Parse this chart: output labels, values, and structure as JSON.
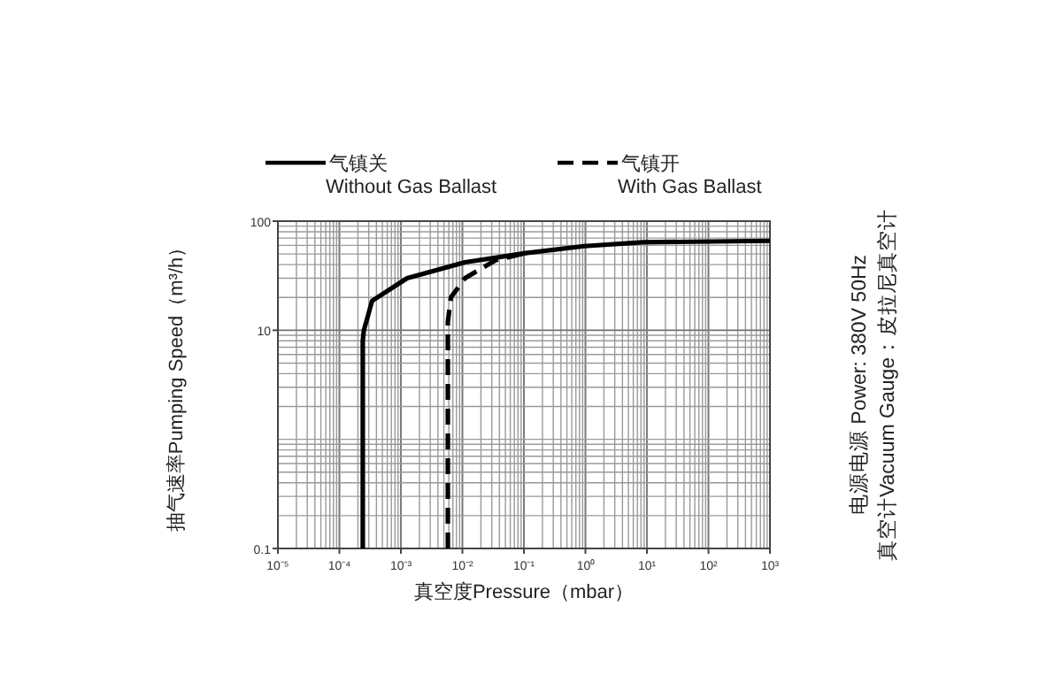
{
  "chart_data": {
    "type": "line",
    "xlabel": "真空度Pressure（mbar）",
    "ylabel": "抽气速率Pumping Speed（m³/h）",
    "log": "xy",
    "grid": true,
    "legend": "top",
    "xlim": [
      1e-05,
      1000
    ],
    "ylim": [
      0.1,
      100
    ],
    "xticks": [
      {
        "value": 1e-05,
        "label": "10⁻⁵"
      },
      {
        "value": 0.0001,
        "label": "10⁻⁴"
      },
      {
        "value": 0.001,
        "label": "10⁻³"
      },
      {
        "value": 0.01,
        "label": "10⁻²"
      },
      {
        "value": 0.1,
        "label": "10⁻¹"
      },
      {
        "value": 1,
        "label": "10⁰"
      },
      {
        "value": 10,
        "label": "10¹"
      },
      {
        "value": 100,
        "label": "10²"
      },
      {
        "value": 1000,
        "label": "10³"
      }
    ],
    "yticks": [
      0.1,
      10,
      100
    ],
    "series": [
      {
        "name": "气镇关\nWithout Gas Ballast",
        "color": "#000000",
        "line_style": "solid",
        "x": [
          0.00024,
          0.00024,
          0.00025,
          0.00034,
          0.00126,
          0.011,
          0.107,
          0.95,
          8.5,
          1000
        ],
        "values": [
          0.1,
          8,
          10,
          18.6,
          30,
          42,
          51,
          59,
          64,
          66
        ]
      },
      {
        "name": "气镇开\nWith Gas Ballast",
        "color": "#000000",
        "line_style": "dashed",
        "x": [
          0.0058,
          0.0058,
          0.0065,
          0.011,
          0.035,
          0.107
        ],
        "values": [
          0.1,
          12,
          20,
          30,
          44,
          51
        ]
      }
    ],
    "annotations": [
      "电源电源 Power: 380V 50Hz",
      "真空计Vacuum Gauge：皮拉尼真空计"
    ]
  }
}
